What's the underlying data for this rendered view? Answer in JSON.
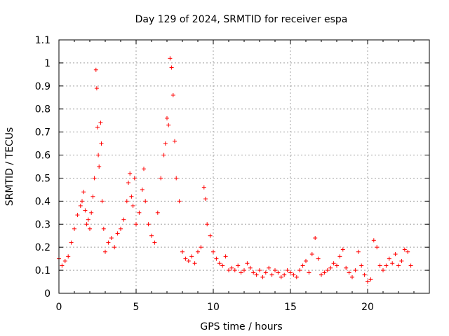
{
  "chart_data": {
    "type": "scatter",
    "title": "Day 129 of 2024, SRMTID for receiver espa",
    "xlabel": "GPS time / hours",
    "ylabel": "SRMTID / TECUs",
    "xlim": [
      0,
      24
    ],
    "ylim": [
      0,
      1.1
    ],
    "xticks": [
      0,
      5,
      10,
      15,
      20
    ],
    "xtick_labels": [
      "0",
      "5",
      "10",
      "15",
      "20"
    ],
    "yticks": [
      0,
      0.1,
      0.2,
      0.3,
      0.4,
      0.5,
      0.6,
      0.7,
      0.8,
      0.9,
      1.0,
      1.1
    ],
    "ytick_labels": [
      "0",
      "0.1",
      "0.2",
      "0.3",
      "0.4",
      "0.5",
      "0.6",
      "0.7",
      "0.8",
      "0.9",
      "1",
      "1.1"
    ],
    "grid": true,
    "marker": "+",
    "color": "#ff0000",
    "series": [
      {
        "name": "SRMTID",
        "x": [
          0.0,
          0.2,
          0.4,
          0.6,
          0.8,
          1.0,
          1.2,
          1.4,
          1.5,
          1.6,
          1.7,
          1.8,
          1.9,
          2.0,
          2.1,
          2.2,
          2.3,
          2.4,
          2.45,
          2.5,
          2.55,
          2.6,
          2.7,
          2.75,
          2.8,
          2.9,
          3.0,
          3.2,
          3.4,
          3.6,
          3.8,
          4.0,
          4.2,
          4.4,
          4.5,
          4.6,
          4.7,
          4.8,
          4.9,
          5.0,
          5.2,
          5.4,
          5.5,
          5.6,
          5.8,
          6.0,
          6.2,
          6.4,
          6.6,
          6.8,
          6.9,
          7.0,
          7.1,
          7.2,
          7.3,
          7.4,
          7.5,
          7.6,
          7.8,
          8.0,
          8.2,
          8.4,
          8.6,
          8.8,
          9.0,
          9.2,
          9.4,
          9.5,
          9.6,
          9.8,
          10.0,
          10.2,
          10.4,
          10.6,
          10.8,
          11.0,
          11.2,
          11.4,
          11.6,
          11.8,
          12.0,
          12.2,
          12.4,
          12.6,
          12.8,
          13.0,
          13.2,
          13.4,
          13.6,
          13.8,
          14.0,
          14.2,
          14.4,
          14.6,
          14.8,
          15.0,
          15.2,
          15.4,
          15.6,
          15.8,
          16.0,
          16.2,
          16.4,
          16.6,
          16.8,
          17.0,
          17.2,
          17.4,
          17.6,
          17.8,
          18.0,
          18.2,
          18.4,
          18.6,
          18.8,
          19.0,
          19.2,
          19.4,
          19.6,
          19.8,
          20.0,
          20.2,
          20.4,
          20.6,
          20.8,
          21.0,
          21.2,
          21.4,
          21.6,
          21.8,
          22.0,
          22.2,
          22.4,
          22.6,
          22.8
        ],
        "y": [
          0.15,
          0.12,
          0.14,
          0.16,
          0.22,
          0.28,
          0.34,
          0.38,
          0.4,
          0.44,
          0.36,
          0.3,
          0.32,
          0.28,
          0.35,
          0.42,
          0.5,
          0.97,
          0.89,
          0.72,
          0.6,
          0.55,
          0.74,
          0.65,
          0.4,
          0.28,
          0.18,
          0.22,
          0.24,
          0.2,
          0.26,
          0.28,
          0.32,
          0.4,
          0.48,
          0.52,
          0.42,
          0.38,
          0.5,
          0.3,
          0.35,
          0.45,
          0.54,
          0.4,
          0.3,
          0.25,
          0.22,
          0.35,
          0.5,
          0.6,
          0.65,
          0.76,
          0.73,
          1.02,
          0.98,
          0.86,
          0.66,
          0.5,
          0.4,
          0.18,
          0.15,
          0.14,
          0.16,
          0.13,
          0.18,
          0.2,
          0.46,
          0.41,
          0.3,
          0.25,
          0.18,
          0.15,
          0.13,
          0.12,
          0.16,
          0.1,
          0.11,
          0.1,
          0.12,
          0.09,
          0.1,
          0.13,
          0.11,
          0.09,
          0.08,
          0.1,
          0.07,
          0.09,
          0.11,
          0.08,
          0.1,
          0.09,
          0.07,
          0.08,
          0.1,
          0.09,
          0.08,
          0.07,
          0.1,
          0.12,
          0.14,
          0.09,
          0.17,
          0.24,
          0.15,
          0.08,
          0.09,
          0.1,
          0.11,
          0.13,
          0.12,
          0.16,
          0.19,
          0.11,
          0.09,
          0.07,
          0.1,
          0.18,
          0.12,
          0.08,
          0.05,
          0.06,
          0.23,
          0.2,
          0.12,
          0.1,
          0.12,
          0.15,
          0.13,
          0.17,
          0.12,
          0.14,
          0.19,
          0.18,
          0.12
        ]
      }
    ]
  }
}
